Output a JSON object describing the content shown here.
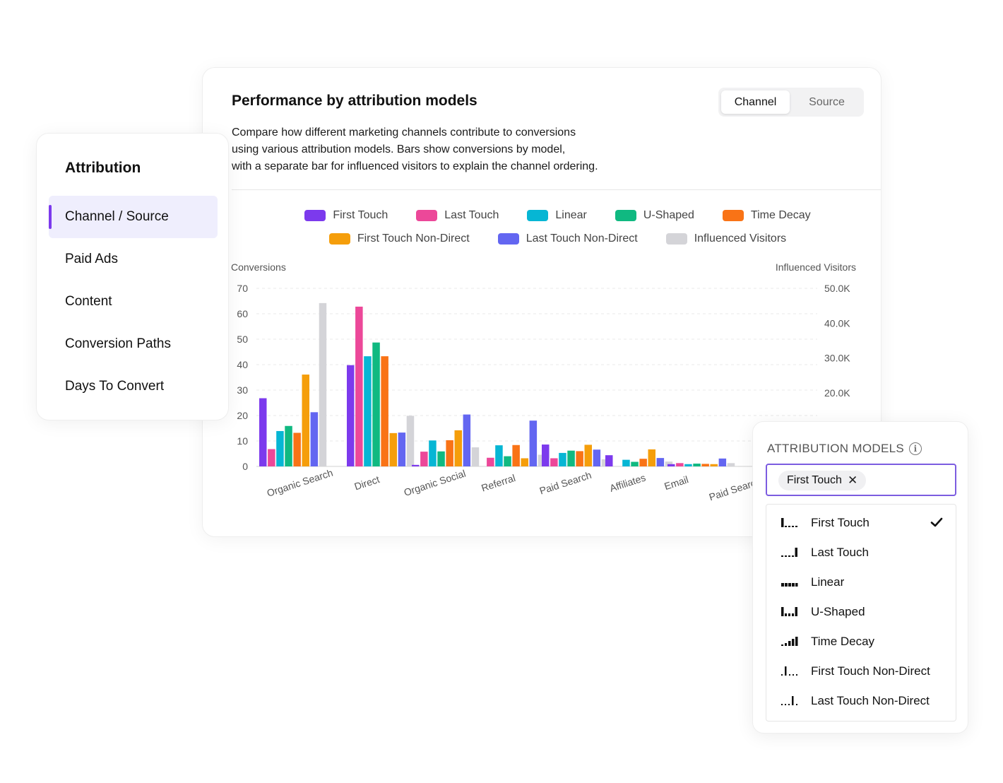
{
  "header": {
    "title": "Performance by attribution models",
    "toggle": [
      {
        "label": "Channel",
        "active": true
      },
      {
        "label": "Source",
        "active": false
      }
    ],
    "description": [
      "Compare how different marketing channels contribute to conversions",
      "using various attribution models. Bars show conversions by model,",
      "with a separate bar for influenced visitors to explain the channel ordering."
    ]
  },
  "sidebar": {
    "title": "Attribution",
    "items": [
      {
        "label": "Channel / Source",
        "active": true
      },
      {
        "label": "Paid Ads",
        "active": false
      },
      {
        "label": "Content",
        "active": false
      },
      {
        "label": "Conversion Paths",
        "active": false
      },
      {
        "label": "Days To Convert",
        "active": false
      }
    ]
  },
  "legend": [
    {
      "label": "First Touch",
      "color": "#7c3aed"
    },
    {
      "label": "Last Touch",
      "color": "#ec4899"
    },
    {
      "label": "Linear",
      "color": "#06b6d4"
    },
    {
      "label": "U-Shaped",
      "color": "#10b981"
    },
    {
      "label": "Time Decay",
      "color": "#f97316"
    },
    {
      "label": "First Touch Non-Direct",
      "color": "#f59e0b"
    },
    {
      "label": "Last Touch Non-Direct",
      "color": "#6366f1"
    },
    {
      "label": "Influenced Visitors",
      "color": "#d4d4d8"
    }
  ],
  "chart_data": {
    "type": "bar",
    "ylabel": "Conversions",
    "y2label": "Influenced Visitors",
    "ylim": [
      0,
      70
    ],
    "yticks": [
      0,
      10,
      20,
      30,
      40,
      50,
      60,
      70
    ],
    "y2ticks": [
      {
        "label": "50.0K",
        "value": 70
      },
      {
        "label": "40.0K",
        "value": 56.3
      },
      {
        "label": "30.0K",
        "value": 42.6
      },
      {
        "label": "20.0K",
        "value": 28.9
      }
    ],
    "grid": true,
    "categories": [
      "Organic Search",
      "Direct",
      "Organic Social",
      "Referral",
      "Paid Search",
      "Affiliates",
      "Email",
      "Paid Search Branded"
    ],
    "series": [
      {
        "name": "First Touch",
        "values": [
          26.8,
          39.8,
          0.6,
          0,
          8.6,
          4.4,
          0.9,
          0
        ]
      },
      {
        "name": "Last Touch",
        "values": [
          6.8,
          62.8,
          5.8,
          3.4,
          3.2,
          0,
          1.3,
          0
        ]
      },
      {
        "name": "Linear",
        "values": [
          13.9,
          43.3,
          10.2,
          8.3,
          5.3,
          2.6,
          0.9,
          0
        ]
      },
      {
        "name": "U-Shaped",
        "values": [
          15.9,
          48.7,
          5.9,
          4.0,
          6.2,
          1.8,
          1.1,
          0
        ]
      },
      {
        "name": "Time Decay",
        "values": [
          13.2,
          43.3,
          10.3,
          8.4,
          6.0,
          3.0,
          1.0,
          0
        ]
      },
      {
        "name": "First Touch Non-Direct",
        "values": [
          36.1,
          13.1,
          14.2,
          3.2,
          8.5,
          6.7,
          0.9,
          0
        ]
      },
      {
        "name": "Last Touch Non-Direct",
        "values": [
          21.3,
          13.3,
          20.4,
          18.0,
          6.6,
          3.3,
          3.1,
          0
        ]
      },
      {
        "name": "Influenced Visitors",
        "values": [
          64.2,
          19.9,
          7.5,
          4.6,
          2.8,
          1.9,
          1.3,
          0
        ]
      }
    ]
  },
  "dropdown": {
    "header": "ATTRIBUTION MODELS",
    "selected_chip": "First Touch",
    "options": [
      {
        "label": "First Touch",
        "icon": "first-touch-icon",
        "checked": true
      },
      {
        "label": "Last Touch",
        "icon": "last-touch-icon",
        "checked": false
      },
      {
        "label": "Linear",
        "icon": "linear-icon",
        "checked": false
      },
      {
        "label": "U-Shaped",
        "icon": "u-shaped-icon",
        "checked": false
      },
      {
        "label": "Time Decay",
        "icon": "time-decay-icon",
        "checked": false
      },
      {
        "label": "First Touch Non-Direct",
        "icon": "first-touch-non-direct-icon",
        "checked": false
      },
      {
        "label": "Last Touch Non-Direct",
        "icon": "last-touch-non-direct-icon",
        "checked": false
      }
    ]
  }
}
